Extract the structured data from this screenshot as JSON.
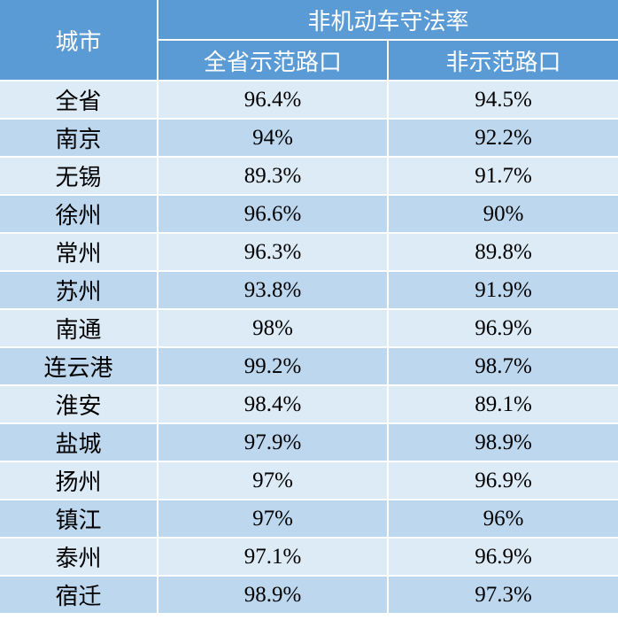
{
  "header": {
    "city_label": "城市",
    "group_label": "非机动车守法率",
    "col_demo": "全省示范路口",
    "col_non_demo": "非示范路口"
  },
  "rows": [
    {
      "city": "全省",
      "demo": "96.4%",
      "non_demo": "94.5%"
    },
    {
      "city": "南京",
      "demo": "94%",
      "non_demo": "92.2%"
    },
    {
      "city": "无锡",
      "demo": "89.3%",
      "non_demo": "91.7%"
    },
    {
      "city": "徐州",
      "demo": "96.6%",
      "non_demo": "90%"
    },
    {
      "city": "常州",
      "demo": "96.3%",
      "non_demo": "89.8%"
    },
    {
      "city": "苏州",
      "demo": "93.8%",
      "non_demo": "91.9%"
    },
    {
      "city": "南通",
      "demo": "98%",
      "non_demo": "96.9%"
    },
    {
      "city": "连云港",
      "demo": "99.2%",
      "non_demo": "98.7%"
    },
    {
      "city": "淮安",
      "demo": "98.4%",
      "non_demo": "89.1%"
    },
    {
      "city": "盐城",
      "demo": "97.9%",
      "non_demo": "98.9%"
    },
    {
      "city": "扬州",
      "demo": "97%",
      "non_demo": "96.9%"
    },
    {
      "city": "镇江",
      "demo": "97%",
      "non_demo": "96%"
    },
    {
      "city": "泰州",
      "demo": "97.1%",
      "non_demo": "96.9%"
    },
    {
      "city": "宿迁",
      "demo": "98.9%",
      "non_demo": "97.3%"
    }
  ],
  "colors": {
    "header_bg": "#5b9bd5",
    "row_light": "#ddebf7",
    "row_dark": "#bdd7ee"
  }
}
